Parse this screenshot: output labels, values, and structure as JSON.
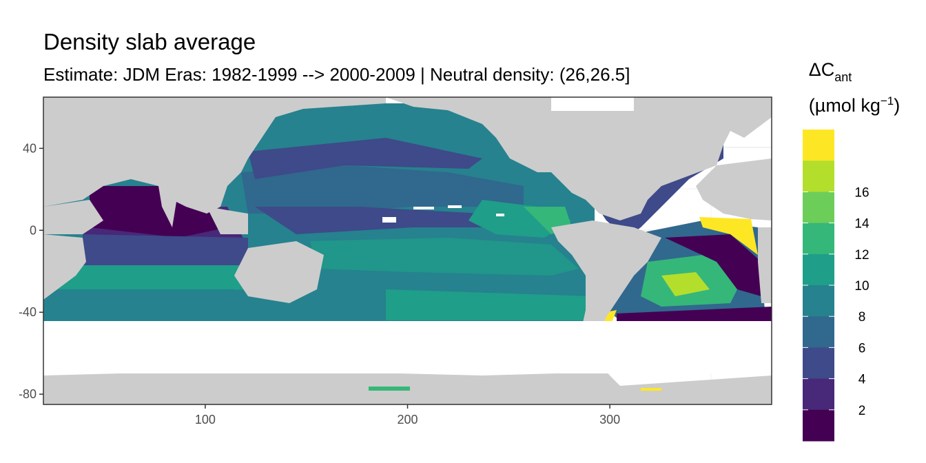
{
  "title": "Density slab average",
  "subtitle": "Estimate: JDM Eras: 1982-1999 --> 2000-2009 | Neutral density: (26,26.5]",
  "map": {
    "x_axis": {
      "range": [
        20,
        380
      ],
      "ticks": [
        100,
        200,
        300
      ],
      "tick_labels": [
        "100",
        "200",
        "300"
      ]
    },
    "y_axis": {
      "range": [
        -85,
        65
      ],
      "ticks": [
        40,
        0,
        -40,
        -80
      ],
      "tick_labels": [
        "40",
        "0",
        "-40",
        "-80"
      ]
    },
    "grid": true,
    "land_color": "#cccccc",
    "no_data_color": "#ffffff"
  },
  "legend": {
    "title_main": "ΔC",
    "title_sub": "ant",
    "unit_prefix": "(µmol kg",
    "unit_exp": "−1",
    "unit_suffix": ")",
    "placement": "right",
    "breaks": [
      "2",
      "4",
      "6",
      "8",
      "10",
      "12",
      "14",
      "16"
    ],
    "colors": [
      "#440154",
      "#482878",
      "#3e4a89",
      "#31688e",
      "#26828e",
      "#1f9e89",
      "#35b779",
      "#6dcd59",
      "#b4de2c",
      "#fde725"
    ]
  }
}
